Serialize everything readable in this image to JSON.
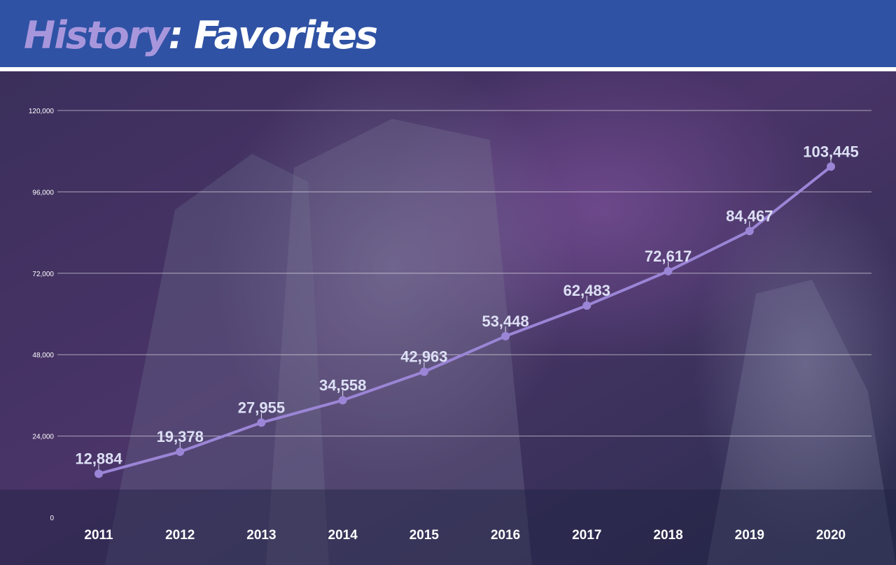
{
  "header": {
    "title_accent": "History",
    "title_rest": ": Favorites"
  },
  "colors": {
    "header_bg": "#2f52a4",
    "title_accent": "#a896dc",
    "line": "#9b85d6",
    "label": "#dde0f5"
  },
  "chart_data": {
    "type": "line",
    "title": "History: Favorites",
    "xlabel": "",
    "ylabel": "",
    "categories": [
      "2011",
      "2012",
      "2013",
      "2014",
      "2015",
      "2016",
      "2017",
      "2018",
      "2019",
      "2020"
    ],
    "series": [
      {
        "values": [
          12884,
          19378,
          27955,
          34558,
          42963,
          53448,
          62483,
          72617,
          84467,
          103445
        ],
        "labels": [
          "12,884",
          "19,378",
          "27,955",
          "34,558",
          "42,963",
          "53,448",
          "62,483",
          "72,617",
          "84,467",
          "103,445"
        ]
      }
    ],
    "ylim": [
      0,
      120000
    ],
    "yticks": [
      0,
      24000,
      48000,
      72000,
      96000,
      120000
    ],
    "ytick_labels": [
      "0",
      "24,000",
      "48,000",
      "72,000",
      "96,000",
      "120,000"
    ],
    "grid": true,
    "legend": "none"
  }
}
